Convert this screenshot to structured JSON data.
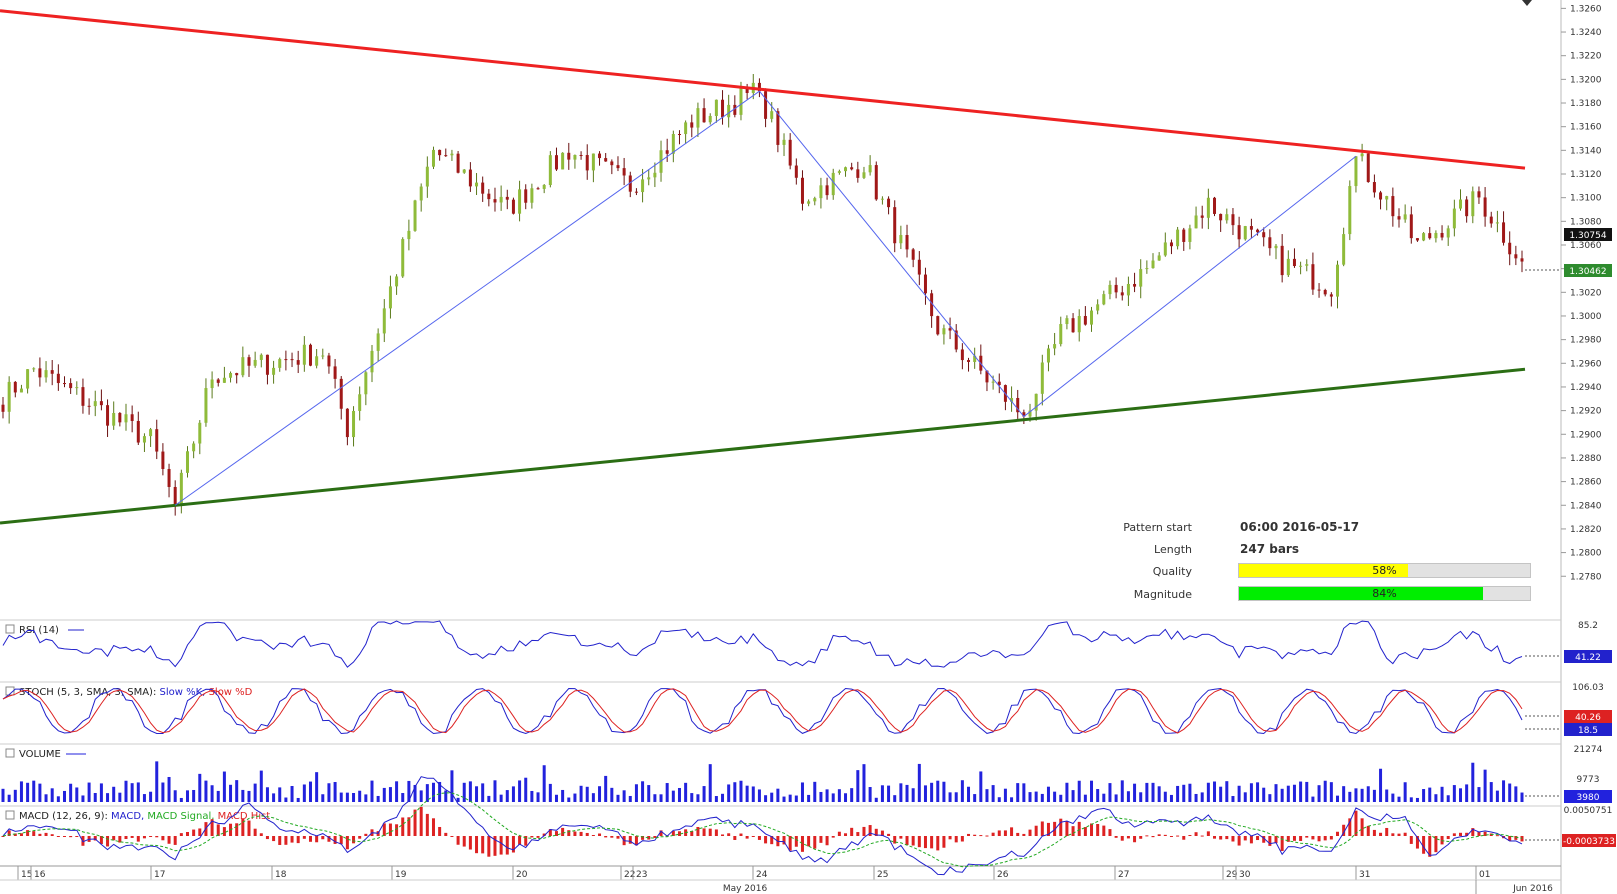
{
  "chart_data": {
    "type": "candlestick",
    "instrument": "",
    "price_axis": {
      "ylim": [
        1.2765,
        1.3262
      ],
      "ticks": [
        "1.3260",
        "1.3240",
        "1.3220",
        "1.3200",
        "1.3180",
        "1.3160",
        "1.3140",
        "1.3120",
        "1.3100",
        "1.3080",
        "1.3060",
        "1.3040",
        "1.3020",
        "1.3000",
        "1.2980",
        "1.2960",
        "1.2940",
        "1.2920",
        "1.2900",
        "1.2880",
        "1.2860",
        "1.2840",
        "1.2820",
        "1.2800",
        "1.2780"
      ],
      "current_price": "1.30754",
      "last_close": "1.30462"
    },
    "time_axis": {
      "day_labels": [
        "15",
        "16",
        "17",
        "18",
        "19",
        "20",
        "22",
        "23",
        "24",
        "25",
        "26",
        "27",
        "29",
        "30",
        "31",
        "01"
      ],
      "month_labels": [
        "May 2016",
        "Jun 2016"
      ]
    },
    "pattern": {
      "resistance_line": {
        "start": 1.3258,
        "end": 1.3125,
        "color": "#ee2222"
      },
      "support_line": {
        "start": 1.2825,
        "end": 1.2955,
        "color": "#2b6e14"
      },
      "zigzag": [
        1.284,
        1.319,
        1.2915,
        1.3135
      ],
      "zigzag_color": "#5566ee"
    },
    "candles": {
      "count": 248,
      "start": 1.293,
      "low": 1.284,
      "high": 1.319,
      "end": 1.3046
    },
    "indicators": {
      "rsi": {
        "label": "RSI (14)",
        "levels": [
          "85.2"
        ],
        "value": "41.22",
        "color": "#2222cc"
      },
      "stoch": {
        "label": "STOCH (5, 3, SMA, 3, SMA):",
        "k_label": "Slow %K,",
        "d_label": "Slow %D",
        "levels": [
          "106.03"
        ],
        "k_value": "18.5",
        "d_value": "40.26",
        "k_color": "#2222cc",
        "d_color": "#dd2222"
      },
      "volume": {
        "label": "VOLUME",
        "levels": [
          "21274",
          "9773"
        ],
        "value": "3980",
        "color": "#2222dd"
      },
      "macd": {
        "label": "MACD (12, 26, 9):",
        "macd_label": "MACD,",
        "signal_label": "MACD Signal,",
        "hist_label": "MACD Hist",
        "levels": [
          "0.0050751"
        ],
        "value": "-0.0003733",
        "macd_color": "#2222cc",
        "signal_color": "#22aa22",
        "hist_color": "#dd2222"
      }
    }
  },
  "info_panel": {
    "pattern_start_label": "Pattern start",
    "pattern_start_value": "06:00 2016-05-17",
    "length_label": "Length",
    "length_value": "247 bars",
    "quality_label": "Quality",
    "quality_value": "58%",
    "quality_fraction": 0.58,
    "quality_color": "#ffff00",
    "magnitude_label": "Magnitude",
    "magnitude_value": "84%",
    "magnitude_fraction": 0.84,
    "magnitude_color": "#00ee00"
  }
}
